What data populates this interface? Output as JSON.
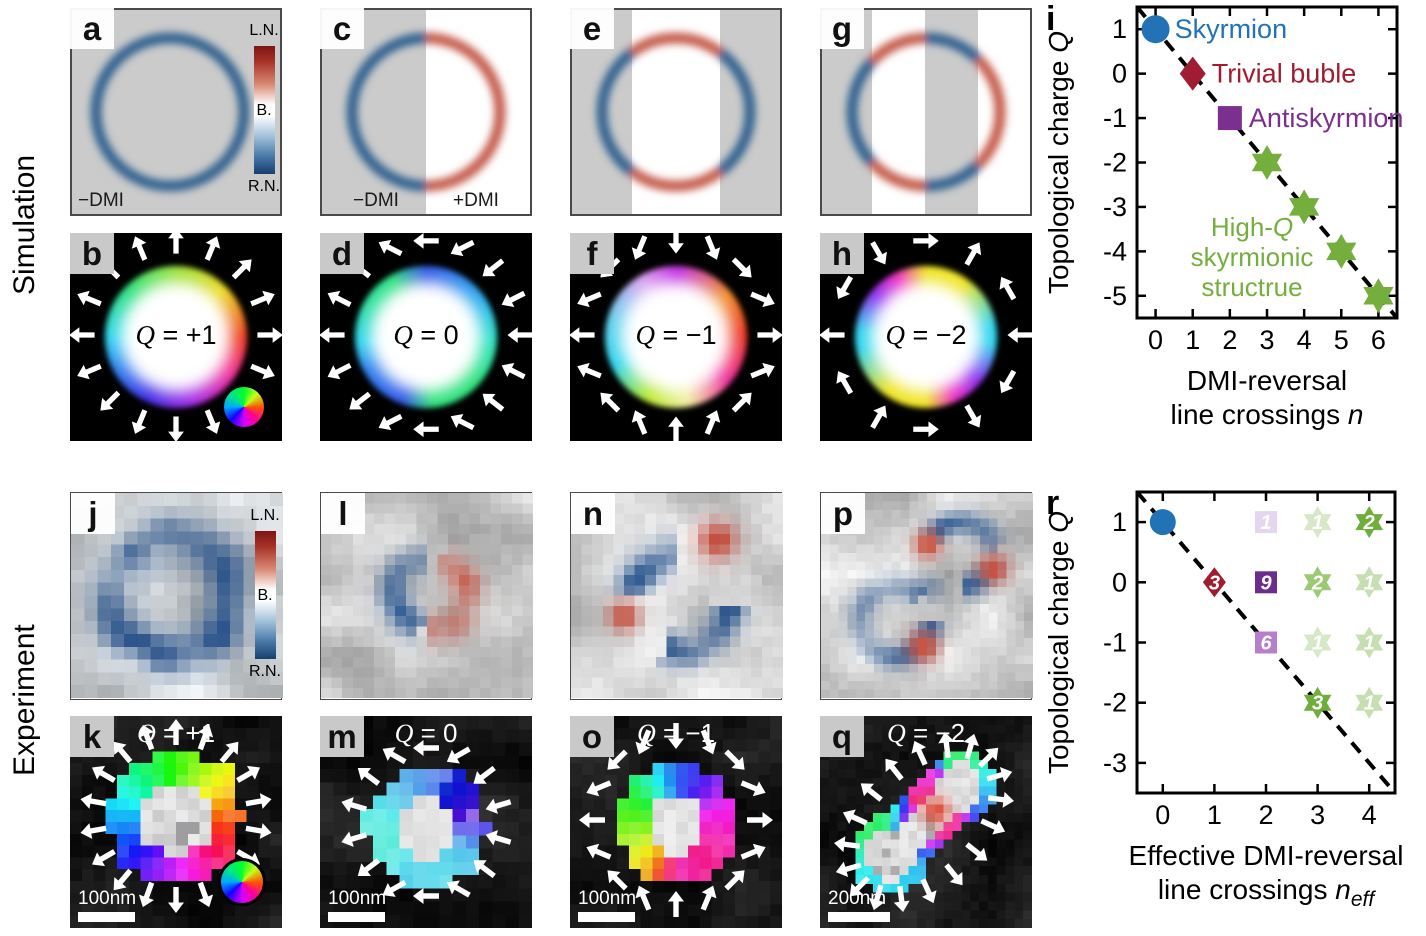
{
  "figure": {
    "row_labels": [
      "Simulation",
      "Experiment"
    ]
  },
  "colorbar": {
    "top": "L.N.",
    "middle": "B.",
    "bottom": "R.N."
  },
  "panels": {
    "a": {
      "label": "a",
      "dmi_left": "−DMI"
    },
    "b": {
      "label": "b",
      "q_text": "Q = +1"
    },
    "c": {
      "label": "c",
      "dmi_left": "−DMI",
      "dmi_right": "+DMI"
    },
    "d": {
      "label": "d",
      "q_text": "Q = 0"
    },
    "e": {
      "label": "e"
    },
    "f": {
      "label": "f",
      "q_text": "Q = −1"
    },
    "g": {
      "label": "g"
    },
    "h": {
      "label": "h",
      "q_text": "Q = −2"
    },
    "i": {
      "label": "i"
    },
    "j": {
      "label": "j"
    },
    "k": {
      "label": "k",
      "q_text": "Q = +1",
      "scale_bar": "100nm"
    },
    "l": {
      "label": "l"
    },
    "m": {
      "label": "m",
      "q_text": "Q = 0",
      "scale_bar": "100nm"
    },
    "n": {
      "label": "n"
    },
    "o": {
      "label": "o",
      "q_text": "Q = −1",
      "scale_bar": "100nm"
    },
    "p": {
      "label": "p"
    },
    "q": {
      "label": "q",
      "q_text": "Q = −2",
      "scale_bar": "200nm"
    },
    "r": {
      "label": "r"
    }
  },
  "chart_data": [
    {
      "panel": "i",
      "type": "scatter",
      "ylabel": "Topological charge Q",
      "xlabel_lines": [
        "DMI-reversal",
        "line crossings n"
      ],
      "x_ticks": [
        0,
        1,
        2,
        3,
        4,
        5,
        6
      ],
      "y_ticks": [
        1,
        0,
        -1,
        -2,
        -3,
        -4,
        -5
      ],
      "xlim": [
        -0.5,
        6.5
      ],
      "ylim": [
        -5.5,
        1.5
      ],
      "grid": false,
      "trend_line": {
        "style": "dashed",
        "color": "#000000",
        "from": [
          -0.5,
          1.5
        ],
        "to": [
          6.5,
          -5.5
        ]
      },
      "series": [
        {
          "name": "Skyrmion",
          "marker": "circle",
          "color": "#2273b5",
          "points": [
            [
              0,
              1
            ]
          ]
        },
        {
          "name": "Trivial buble",
          "marker": "diamond",
          "color": "#a01c30",
          "points": [
            [
              1,
              0
            ]
          ]
        },
        {
          "name": "Antiskyrmion",
          "marker": "square",
          "color": "#7b2f8e",
          "points": [
            [
              2,
              -1
            ]
          ]
        },
        {
          "name": "High-Q skyrmionic structrue",
          "label_lines": [
            "High-Q",
            "skyrmionic",
            "structrue"
          ],
          "marker": "star6",
          "color": "#74af3e",
          "points": [
            [
              3,
              -2
            ],
            [
              4,
              -3
            ],
            [
              5,
              -4
            ],
            [
              6,
              -5
            ]
          ]
        }
      ]
    },
    {
      "panel": "r",
      "type": "scatter",
      "ylabel": "Topological charge Q",
      "xlabel_lines": [
        "Effective DMI-reversal",
        "line crossings n"
      ],
      "xlabel_subscript": "eff",
      "x_ticks": [
        0,
        1,
        2,
        3,
        4
      ],
      "y_ticks": [
        1,
        0,
        -1,
        -2,
        -3
      ],
      "xlim": [
        -0.5,
        4.5
      ],
      "ylim": [
        -3.5,
        1.5
      ],
      "grid": false,
      "trend_line": {
        "style": "dashed",
        "color": "#000000",
        "from": [
          -0.5,
          1.5
        ],
        "to": [
          4.5,
          -3.5
        ]
      },
      "points": [
        {
          "x": 0,
          "y": 1,
          "marker": "circle",
          "color": "#2273b5",
          "count": null
        },
        {
          "x": 2,
          "y": 1,
          "marker": "square",
          "color": "#e4d6ee",
          "count": 1
        },
        {
          "x": 3,
          "y": 1,
          "marker": "star6",
          "color": "#d7e8c8",
          "count": 1
        },
        {
          "x": 4,
          "y": 1,
          "marker": "star6",
          "color": "#6fae3b",
          "count": 2
        },
        {
          "x": 1,
          "y": 0,
          "marker": "diamond",
          "color": "#a01c30",
          "count": 3
        },
        {
          "x": 2,
          "y": 0,
          "marker": "square",
          "color": "#6c2d90",
          "count": 9
        },
        {
          "x": 3,
          "y": 0,
          "marker": "star6",
          "color": "#9cc973",
          "count": 2
        },
        {
          "x": 4,
          "y": 0,
          "marker": "star6",
          "color": "#c6dfb0",
          "count": 1
        },
        {
          "x": 2,
          "y": -1,
          "marker": "square",
          "color": "#b77fc9",
          "count": 6
        },
        {
          "x": 3,
          "y": -1,
          "marker": "star6",
          "color": "#d7e8c8",
          "count": 1
        },
        {
          "x": 4,
          "y": -1,
          "marker": "star6",
          "color": "#c6dfb0",
          "count": 1
        },
        {
          "x": 3,
          "y": -2,
          "marker": "star6",
          "color": "#6fae3b",
          "count": 3
        },
        {
          "x": 4,
          "y": -2,
          "marker": "star6",
          "color": "#c6dfb0",
          "count": 1
        }
      ]
    }
  ]
}
